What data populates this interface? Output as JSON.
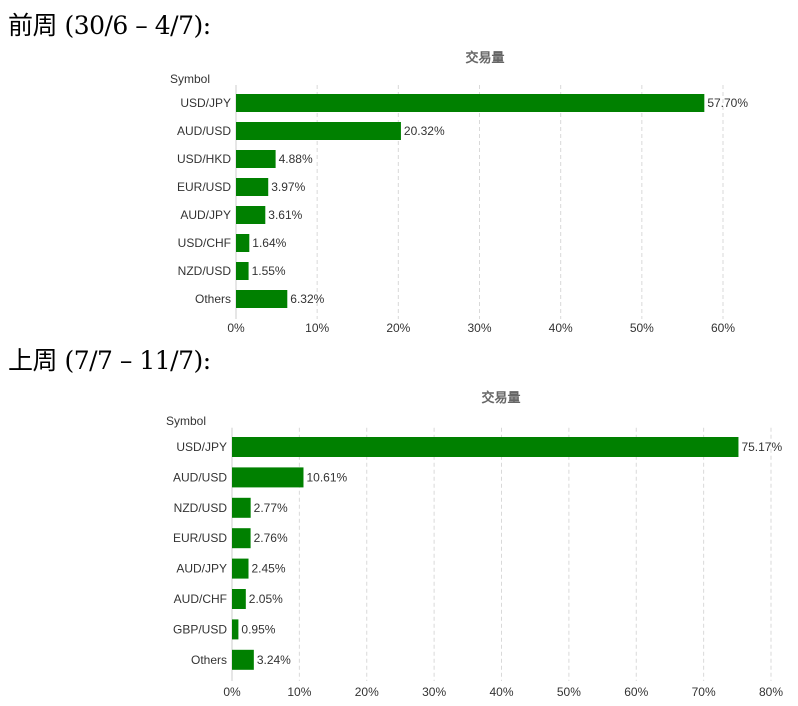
{
  "headings": {
    "previous_week": "前周 (30/6 – 4/7):",
    "last_week": "上周 (7/7 – 11/7):"
  },
  "chart_data": [
    {
      "type": "bar",
      "orientation": "horizontal",
      "title": "交易量",
      "ylabel": "Symbol",
      "categories": [
        "USD/JPY",
        "AUD/USD",
        "USD/HKD",
        "EUR/USD",
        "AUD/JPY",
        "USD/CHF",
        "NZD/USD",
        "Others"
      ],
      "values": [
        57.7,
        20.32,
        4.88,
        3.97,
        3.61,
        1.64,
        1.55,
        6.32
      ],
      "value_labels": [
        "57.70%",
        "20.32%",
        "4.88%",
        "3.97%",
        "3.61%",
        "1.64%",
        "1.55%",
        "6.32%"
      ],
      "xlim": [
        0,
        60
      ],
      "xticks": [
        0,
        10,
        20,
        30,
        40,
        50,
        60
      ],
      "xtick_labels": [
        "0%",
        "10%",
        "20%",
        "30%",
        "40%",
        "50%",
        "60%"
      ],
      "grid": true,
      "color": "#008000"
    },
    {
      "type": "bar",
      "orientation": "horizontal",
      "title": "交易量",
      "ylabel": "Symbol",
      "categories": [
        "USD/JPY",
        "AUD/USD",
        "NZD/USD",
        "EUR/USD",
        "AUD/JPY",
        "AUD/CHF",
        "GBP/USD",
        "Others"
      ],
      "values": [
        75.17,
        10.61,
        2.77,
        2.76,
        2.45,
        2.05,
        0.95,
        3.24
      ],
      "value_labels": [
        "75.17%",
        "10.61%",
        "2.77%",
        "2.76%",
        "2.45%",
        "2.05%",
        "0.95%",
        "3.24%"
      ],
      "xlim": [
        0,
        80
      ],
      "xticks": [
        0,
        10,
        20,
        30,
        40,
        50,
        60,
        70,
        80
      ],
      "xtick_labels": [
        "0%",
        "10%",
        "20%",
        "30%",
        "40%",
        "50%",
        "60%",
        "70%",
        "80%"
      ],
      "grid": true,
      "color": "#008000"
    }
  ]
}
